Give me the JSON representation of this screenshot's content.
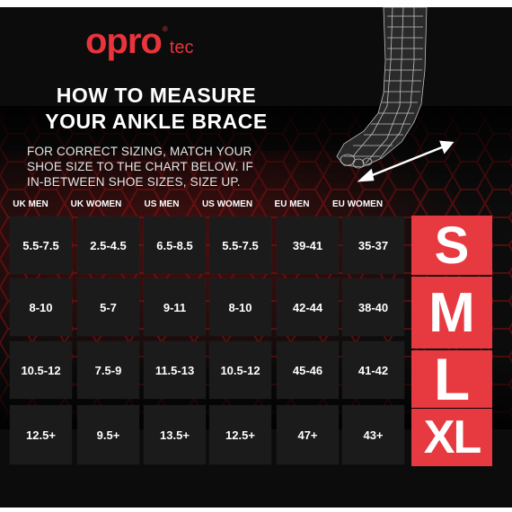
{
  "brand": {
    "main": "opro",
    "sub": "tec",
    "reg": "®"
  },
  "title": {
    "line1": "HOW TO MEASURE",
    "line2": "YOUR ANKLE BRACE"
  },
  "description": {
    "line1": "FOR CORRECT SIZING, MATCH YOUR",
    "line2": "SHOE SIZE TO THE CHART BELOW. IF",
    "line3": "IN-BETWEEN SHOE SIZES, SIZE UP."
  },
  "colors": {
    "accent": "#e63a40",
    "background": "#0c0c0c",
    "cell": "#1b1b1b"
  },
  "icons": {
    "foot": "foot-wireframe-icon",
    "measure": "double-arrow-icon"
  },
  "table": {
    "headers": [
      "UK MEN",
      "UK WOMEN",
      "US MEN",
      "US WOMEN",
      "EU MEN",
      "EU WOMEN"
    ],
    "rows": [
      {
        "size": "S",
        "values": [
          "5.5-7.5",
          "2.5-4.5",
          "6.5-8.5",
          "5.5-7.5",
          "39-41",
          "35-37"
        ]
      },
      {
        "size": "M",
        "values": [
          "8-10",
          "5-7",
          "9-11",
          "8-10",
          "42-44",
          "38-40"
        ]
      },
      {
        "size": "L",
        "values": [
          "10.5-12",
          "7.5-9",
          "11.5-13",
          "10.5-12",
          "45-46",
          "41-42"
        ]
      },
      {
        "size": "XL",
        "values": [
          "12.5+",
          "9.5+",
          "13.5+",
          "12.5+",
          "47+",
          "43+"
        ]
      }
    ]
  }
}
